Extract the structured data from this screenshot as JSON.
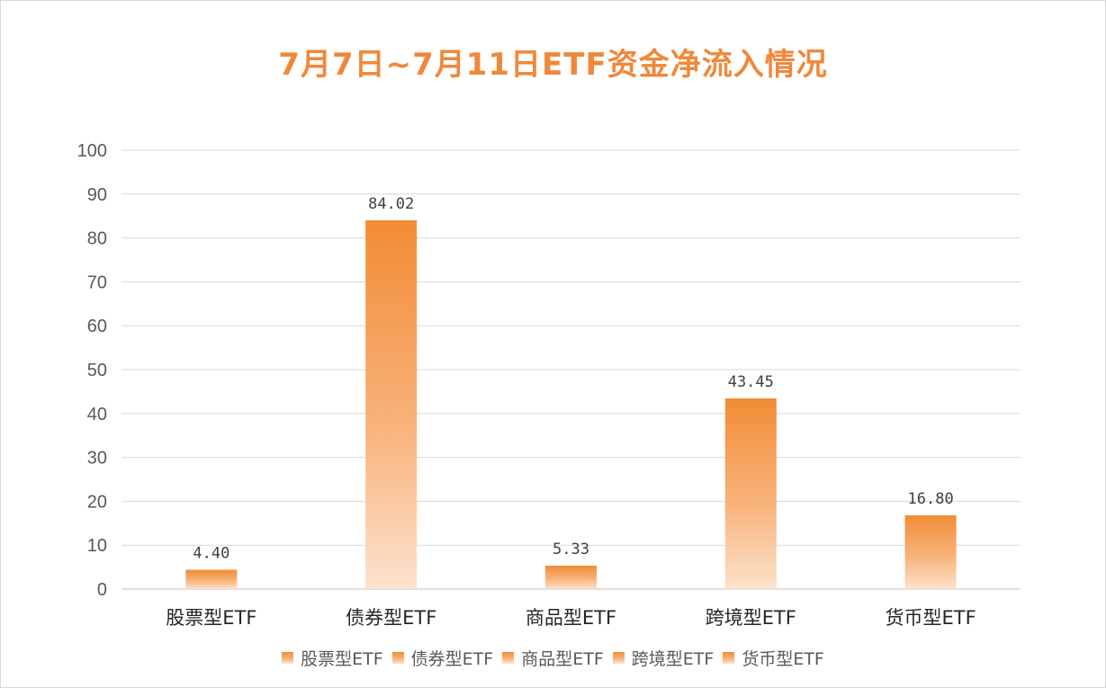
{
  "chart_data": {
    "type": "bar",
    "title": "7月7日~7月11日ETF资金净流入情况",
    "categories": [
      "股票型ETF",
      "债券型ETF",
      "商品型ETF",
      "跨境型ETF",
      "货币型ETF"
    ],
    "values": [
      4.4,
      84.02,
      5.33,
      43.45,
      16.8
    ],
    "data_labels": [
      "4.40",
      "84.02",
      "5.33",
      "43.45",
      "16.80"
    ],
    "ylim": [
      0,
      100
    ],
    "yticks": [
      0,
      10,
      20,
      30,
      40,
      50,
      60,
      70,
      80,
      90,
      100
    ],
    "grid": true,
    "legend_position": "bottom",
    "legend": [
      "股票型ETF",
      "债券型ETF",
      "商品型ETF",
      "跨境型ETF",
      "货币型ETF"
    ],
    "colors": {
      "bar_top": "#f28c35",
      "bar_bottom": "#fde2cc",
      "title": "#f0883a",
      "grid": "#d9d9d9",
      "text": "#595959"
    }
  }
}
